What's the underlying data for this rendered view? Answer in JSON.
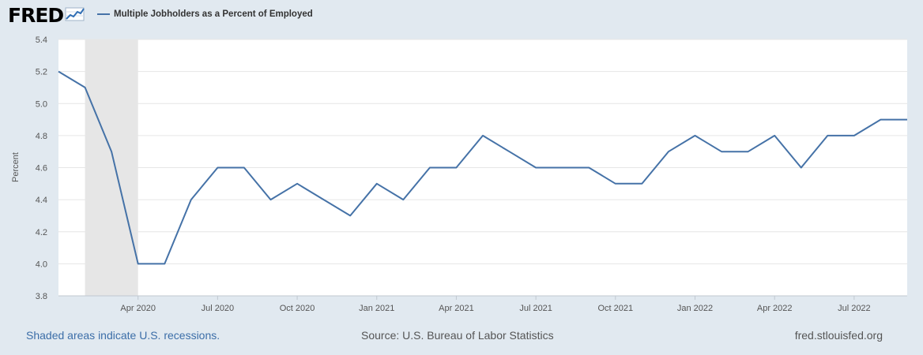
{
  "header": {
    "logo_text": "FRED",
    "legend_label": "Multiple Jobholders as a Percent of Employed"
  },
  "colors": {
    "series": "#4572a7",
    "recession": "#e6e6e6",
    "background": "#e1e9f0",
    "plot": "#ffffff",
    "grid": "#e0e0e0",
    "link": "#3c6ea8"
  },
  "chart_data": {
    "type": "line",
    "title": "Multiple Jobholders as a Percent of Employed",
    "xlabel": "",
    "ylabel": "Percent",
    "ylim": [
      3.8,
      5.4
    ],
    "yticks": [
      3.8,
      4.0,
      4.2,
      4.4,
      4.6,
      4.8,
      5.0,
      5.2,
      5.4
    ],
    "ytick_labels": [
      "3.8",
      "4.0",
      "4.2",
      "4.4",
      "4.6",
      "4.8",
      "5.0",
      "5.2",
      "5.4"
    ],
    "x_start_month": "2020-01",
    "x_end_month": "2022-09",
    "x_tick_labels": [
      "Apr 2020",
      "Jul 2020",
      "Oct 2020",
      "Jan 2021",
      "Apr 2021",
      "Jul 2021",
      "Oct 2021",
      "Jan 2022",
      "Apr 2022",
      "Jul 2022"
    ],
    "x_tick_months": [
      3,
      6,
      9,
      12,
      15,
      18,
      21,
      24,
      27,
      30
    ],
    "recession_months": [
      1,
      3
    ],
    "series": [
      {
        "name": "Multiple Jobholders as a Percent of Employed",
        "values": [
          5.2,
          5.1,
          4.7,
          4.0,
          4.0,
          4.4,
          4.6,
          4.6,
          4.4,
          4.5,
          4.4,
          4.3,
          4.5,
          4.4,
          4.6,
          4.6,
          4.8,
          4.7,
          4.6,
          4.6,
          4.6,
          4.5,
          4.5,
          4.7,
          4.8,
          4.7,
          4.7,
          4.8,
          4.6,
          4.8,
          4.8,
          4.9,
          4.9
        ]
      }
    ],
    "grid": true
  },
  "footer": {
    "recession_note": "Shaded areas indicate U.S. recessions.",
    "source": "Source: U.S. Bureau of Labor Statistics",
    "site": "fred.stlouisfed.org"
  }
}
